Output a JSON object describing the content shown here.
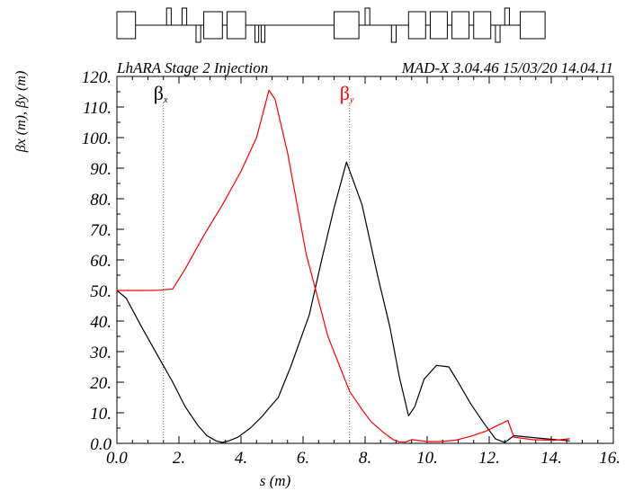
{
  "chart_data": {
    "type": "line",
    "title": "LhARA Stage 2 Injection",
    "subtitle": "MAD-X 3.04.46  15/03/20 14.04.11",
    "xlabel": "s (m)",
    "ylabel": "βx (m), βy (m)",
    "xlim": [
      0,
      16
    ],
    "ylim": [
      0,
      120
    ],
    "x_ticks": [
      "0.0",
      "2.",
      "4.",
      "6.",
      "8.",
      "10.",
      "12.",
      "14.",
      "16."
    ],
    "y_ticks": [
      "0.0",
      "10.",
      "20.",
      "30.",
      "40.",
      "50.",
      "60.",
      "70.",
      "80.",
      "90.",
      "100.",
      "110.",
      "120."
    ],
    "grid": false,
    "legend": [
      {
        "symbol": "β",
        "sub": "x",
        "color": "#000000",
        "marker_s": 1.5
      },
      {
        "symbol": "β",
        "sub": "y",
        "color": "#ff0000",
        "marker_s": 7.5
      }
    ],
    "series": [
      {
        "name": "βx",
        "color": "#000000",
        "points": [
          [
            0.0,
            50.0
          ],
          [
            0.3,
            47.5
          ],
          [
            0.8,
            38.0
          ],
          [
            1.3,
            29.0
          ],
          [
            1.8,
            20.0
          ],
          [
            2.2,
            12.0
          ],
          [
            2.6,
            6.0
          ],
          [
            2.9,
            2.5
          ],
          [
            3.2,
            0.8
          ],
          [
            3.4,
            0.3
          ],
          [
            3.6,
            0.8
          ],
          [
            3.9,
            2.0
          ],
          [
            4.3,
            5.0
          ],
          [
            4.7,
            9.0
          ],
          [
            4.9,
            11.5
          ],
          [
            5.2,
            15.0
          ],
          [
            5.6,
            25.0
          ],
          [
            6.2,
            42.0
          ],
          [
            6.6,
            60.0
          ],
          [
            7.0,
            77.0
          ],
          [
            7.4,
            92.0
          ],
          [
            7.9,
            78.0
          ],
          [
            8.4,
            55.0
          ],
          [
            8.8,
            38.0
          ],
          [
            9.1,
            22.0
          ],
          [
            9.4,
            9.0
          ],
          [
            9.6,
            12.0
          ],
          [
            9.9,
            21.0
          ],
          [
            10.3,
            25.5
          ],
          [
            10.7,
            25.0
          ],
          [
            11.0,
            20.0
          ],
          [
            11.4,
            13.0
          ],
          [
            11.8,
            7.0
          ],
          [
            12.2,
            1.5
          ],
          [
            12.5,
            0.3
          ],
          [
            12.8,
            2.5
          ],
          [
            13.5,
            1.8
          ],
          [
            14.6,
            0.8
          ]
        ]
      },
      {
        "name": "βy",
        "color": "#ff0000",
        "points": [
          [
            0.0,
            50.0
          ],
          [
            0.5,
            50.0
          ],
          [
            1.0,
            50.0
          ],
          [
            1.4,
            50.1
          ],
          [
            1.8,
            50.5
          ],
          [
            2.2,
            57.0
          ],
          [
            2.8,
            68.0
          ],
          [
            3.4,
            78.0
          ],
          [
            4.0,
            89.0
          ],
          [
            4.5,
            100.0
          ],
          [
            4.9,
            115.5
          ],
          [
            5.1,
            112.5
          ],
          [
            5.5,
            95.0
          ],
          [
            6.1,
            62.0
          ],
          [
            6.8,
            35.0
          ],
          [
            7.5,
            17.0
          ],
          [
            7.9,
            11.0
          ],
          [
            8.2,
            7.0
          ],
          [
            8.6,
            3.5
          ],
          [
            8.9,
            1.2
          ],
          [
            9.1,
            0.5
          ],
          [
            9.3,
            0.4
          ],
          [
            9.5,
            1.2
          ],
          [
            10.0,
            0.6
          ],
          [
            10.4,
            0.6
          ],
          [
            10.9,
            1.0
          ],
          [
            11.4,
            2.3
          ],
          [
            11.9,
            4.0
          ],
          [
            12.3,
            6.0
          ],
          [
            12.6,
            7.5
          ],
          [
            12.8,
            2.0
          ],
          [
            13.4,
            1.2
          ],
          [
            14.1,
            1.0
          ],
          [
            14.6,
            1.5
          ]
        ]
      }
    ],
    "lattice": [
      {
        "kind": "box",
        "s": 0.0,
        "w": 0.6
      },
      {
        "kind": "up",
        "s": 1.6,
        "w": 0.15
      },
      {
        "kind": "up",
        "s": 2.1,
        "w": 0.15
      },
      {
        "kind": "down",
        "s": 2.55,
        "w": 0.15
      },
      {
        "kind": "box",
        "s": 2.8,
        "w": 0.6
      },
      {
        "kind": "box",
        "s": 3.55,
        "w": 0.6
      },
      {
        "kind": "down",
        "s": 4.45,
        "w": 0.12
      },
      {
        "kind": "down",
        "s": 4.65,
        "w": 0.12
      },
      {
        "kind": "box",
        "s": 7.0,
        "w": 0.8
      },
      {
        "kind": "up",
        "s": 8.0,
        "w": 0.15
      },
      {
        "kind": "down",
        "s": 8.85,
        "w": 0.15
      },
      {
        "kind": "box",
        "s": 9.4,
        "w": 0.55
      },
      {
        "kind": "box",
        "s": 10.1,
        "w": 0.55
      },
      {
        "kind": "box",
        "s": 10.8,
        "w": 0.55
      },
      {
        "kind": "box",
        "s": 11.5,
        "w": 0.55
      },
      {
        "kind": "down",
        "s": 12.2,
        "w": 0.15
      },
      {
        "kind": "up",
        "s": 12.5,
        "w": 0.15
      },
      {
        "kind": "box",
        "s": 13.0,
        "w": 0.8
      }
    ]
  }
}
